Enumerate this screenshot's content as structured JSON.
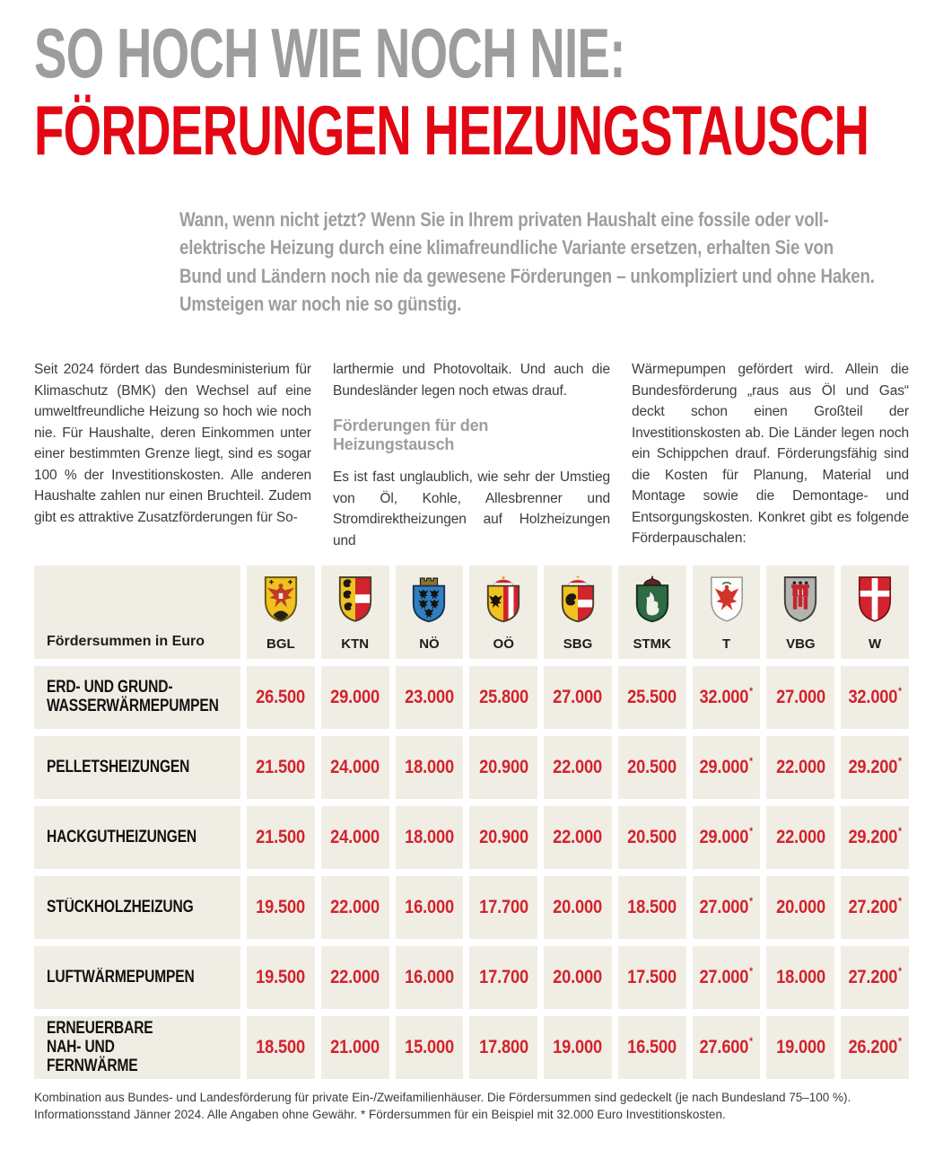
{
  "colors": {
    "headline_gray": "#9d9d9c",
    "headline_red": "#e30613",
    "value_red": "#d2232e",
    "table_cell_bg": "#f0eee4",
    "body_text": "#3c3c3b"
  },
  "header": {
    "title_line1": "SO HOCH WIE NOCH NIE:",
    "title_line2": "FÖRDERUNGEN HEIZUNGSTAUSCH",
    "intro": "Wann, wenn nicht jetzt? Wenn Sie in Ihrem privaten Haushalt eine fossile oder voll-\nelektrische Heizung durch eine klimafreundliche Variante ersetzen, erhalten Sie von\nBund und Ländern noch nie da gewesene Förderungen – unkompliziert und ohne Haken.\nUmsteigen war noch nie so günstig."
  },
  "article": {
    "col1": "Seit 2024 fördert das Bundesministerium für Klimaschutz (BMK) den Wechsel auf eine umweltfreundliche Heizung so hoch wie noch nie. Für Haushalte, deren Einkommen unter einer bestimmten Grenze liegt, sind es sogar 100 % der Investitionskosten. Alle anderen Haushalte zahlen nur einen Bruchteil. Zudem gibt es attraktive Zusatzförderungen für So-",
    "col2_p1": "larthermie und Photovoltaik. Und auch die Bundesländer legen noch etwas drauf.",
    "col2_subhead": "Förderungen für den Heizungstausch",
    "col2_p2": "Es ist fast unglaublich, wie sehr der Umstieg von Öl, Kohle, Allesbrenner und Stromdirektheizungen auf Holzheizungen und",
    "col3": "Wärmepumpen gefördert wird. Allein die Bundesförderung „raus aus Öl und Gas“ deckt schon einen Großteil der Investitionskosten ab. Die Länder legen noch ein Schippchen drauf. Förderungsfähig sind die Kosten für Planung, Material und Montage sowie die Demontage- und Entsorgungskosten. Konkret gibt es folgende Förderpauschalen:"
  },
  "table": {
    "corner_label": "Fördersummen in Euro",
    "columns": [
      {
        "abbr": "BGL",
        "icon": "burgenland-coat-of-arms"
      },
      {
        "abbr": "KTN",
        "icon": "kaernten-coat-of-arms"
      },
      {
        "abbr": "NÖ",
        "icon": "niederoesterreich-coat-of-arms"
      },
      {
        "abbr": "OÖ",
        "icon": "oberoesterreich-coat-of-arms"
      },
      {
        "abbr": "SBG",
        "icon": "salzburg-coat-of-arms"
      },
      {
        "abbr": "STMK",
        "icon": "steiermark-coat-of-arms"
      },
      {
        "abbr": "T",
        "icon": "tirol-coat-of-arms"
      },
      {
        "abbr": "VBG",
        "icon": "vorarlberg-coat-of-arms"
      },
      {
        "abbr": "W",
        "icon": "wien-coat-of-arms"
      }
    ],
    "rows": [
      {
        "label": "ERD- UND GRUND-\nWASSERWÄRMEPUMPEN",
        "values": [
          "26.500",
          "29.000",
          "23.000",
          "25.800",
          "27.000",
          "25.500",
          "32.000*",
          "27.000",
          "32.000*"
        ]
      },
      {
        "label": "PELLETSHEIZUNGEN",
        "values": [
          "21.500",
          "24.000",
          "18.000",
          "20.900",
          "22.000",
          "20.500",
          "29.000*",
          "22.000",
          "29.200*"
        ]
      },
      {
        "label": "HACKGUTHEIZUNGEN",
        "values": [
          "21.500",
          "24.000",
          "18.000",
          "20.900",
          "22.000",
          "20.500",
          "29.000*",
          "22.000",
          "29.200*"
        ]
      },
      {
        "label": "STÜCKHOLZHEIZUNG",
        "values": [
          "19.500",
          "22.000",
          "16.000",
          "17.700",
          "20.000",
          "18.500",
          "27.000*",
          "20.000",
          "27.200*"
        ]
      },
      {
        "label": "LUFTWÄRMEPUMPEN",
        "values": [
          "19.500",
          "22.000",
          "16.000",
          "17.700",
          "20.000",
          "17.500",
          "27.000*",
          "18.000",
          "27.200*"
        ]
      },
      {
        "label": "ERNEUERBARE\nNAH- UND FERNWÄRME",
        "values": [
          "18.500",
          "21.000",
          "15.000",
          "17.800",
          "19.000",
          "16.500",
          "27.600*",
          "19.000",
          "26.200*"
        ]
      }
    ]
  },
  "footnote": {
    "text": "Kombination aus Bundes- und Landesförderung für private Ein-/Zweifamilienhäuser. Die Fördersummen sind gedeckelt (je nach Bundesland 75–100 %).\nInformationsstand Jänner 2024. Alle Angaben ohne Gewähr. * Fördersummen für ein Beispiel mit 32.000 Euro Investitionskosten."
  }
}
